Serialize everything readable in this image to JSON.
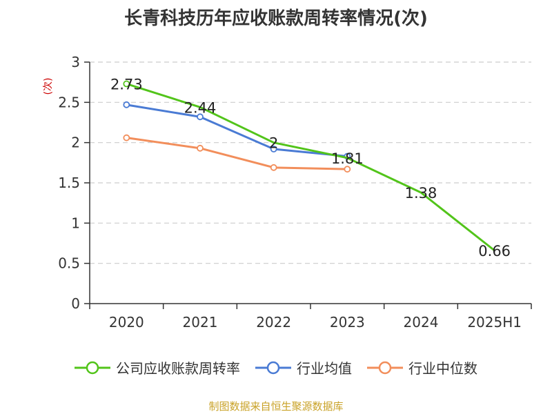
{
  "colors": {
    "series_company": "#52c41a",
    "series_avg": "#4a7bd4",
    "series_median": "#f28e5b",
    "unit_text": "#cc0000",
    "source_text": "#c9a227",
    "grid": "#cccccc",
    "axis": "#333333"
  },
  "chart_data": {
    "type": "line",
    "title": "长青科技历年应收账款周转率情况(次)",
    "y_unit": "(次)",
    "categories": [
      "2020",
      "2021",
      "2022",
      "2023",
      "2024",
      "2025H1"
    ],
    "ylim": [
      0,
      3
    ],
    "yticks": [
      "0",
      "0.5",
      "1",
      "1.5",
      "2",
      "2.5",
      "3"
    ],
    "grid": true,
    "legend_position": "bottom",
    "series": [
      {
        "name": "公司应收账款周转率",
        "color_key": "series_company",
        "values": [
          2.73,
          2.44,
          2.0,
          1.81,
          1.38,
          0.66
        ],
        "labels": [
          "2.73",
          "2.44",
          "2",
          "1.81",
          "1.38",
          "0.66"
        ],
        "markers": [
          0
        ]
      },
      {
        "name": "行业均值",
        "color_key": "series_avg",
        "values": [
          2.47,
          2.32,
          1.92,
          1.83,
          null,
          null
        ],
        "markers": [
          0,
          1,
          2,
          3
        ]
      },
      {
        "name": "行业中位数",
        "color_key": "series_median",
        "values": [
          2.06,
          1.93,
          1.69,
          1.67,
          null,
          null
        ],
        "markers": [
          0,
          1,
          2,
          3
        ]
      }
    ]
  },
  "source": "制图数据来自恒生聚源数据库"
}
